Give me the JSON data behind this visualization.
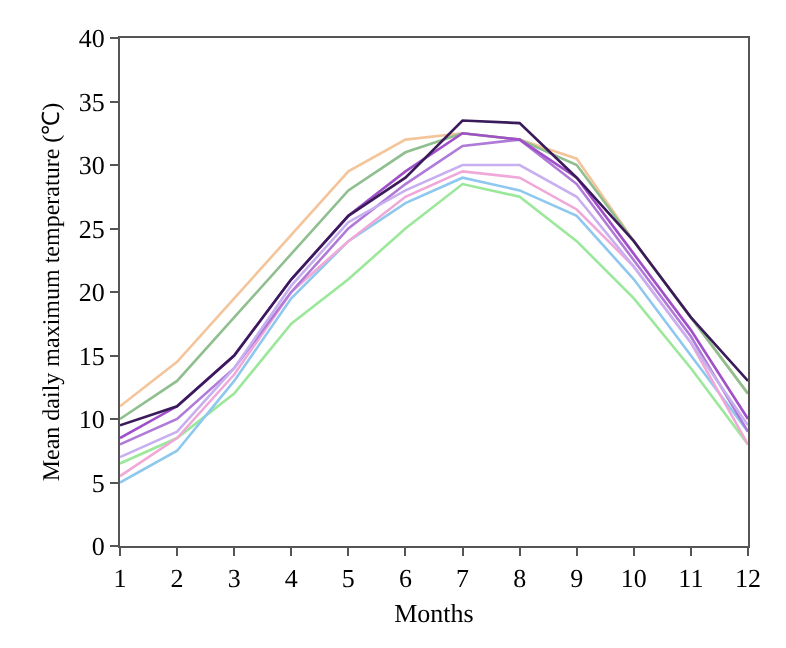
{
  "chart_data": {
    "type": "line",
    "xlabel": "Months",
    "ylabel": "Mean daily maximum temperature (℃)",
    "x": [
      1,
      2,
      3,
      4,
      5,
      6,
      7,
      8,
      9,
      10,
      11,
      12
    ],
    "xlim": [
      1,
      12
    ],
    "xticks": [
      1,
      2,
      3,
      4,
      5,
      6,
      7,
      8,
      9,
      10,
      11,
      12
    ],
    "ylim": [
      0,
      40
    ],
    "yticks": [
      0,
      5,
      10,
      15,
      20,
      25,
      30,
      35,
      40
    ],
    "grid": false,
    "marker": "none",
    "line_style": "solid",
    "series": [
      {
        "color": "#f4c59a",
        "values": [
          11,
          14.5,
          19.5,
          24.5,
          29.5,
          32,
          32.5,
          32,
          30.5,
          24,
          18,
          12
        ]
      },
      {
        "color": "#8fbf8f",
        "values": [
          10,
          13,
          18,
          23,
          28,
          31,
          32.5,
          32,
          30,
          24,
          18,
          12
        ]
      },
      {
        "color": "#9be89b",
        "values": [
          6.5,
          8.5,
          12,
          17.5,
          21,
          25,
          28.5,
          27.5,
          24,
          19.5,
          14,
          8
        ]
      },
      {
        "color": "#8fc8ee",
        "values": [
          5,
          7.5,
          13,
          19.5,
          24,
          27,
          29,
          28,
          26,
          21,
          15,
          9
        ]
      },
      {
        "color": "#f0a8d8",
        "values": [
          5.5,
          8.5,
          13.5,
          20,
          24,
          27.5,
          29.5,
          29,
          26.5,
          22,
          16,
          8
        ]
      },
      {
        "color": "#b07ad8",
        "values": [
          8,
          10,
          14,
          20,
          25,
          28.5,
          31.5,
          32,
          28.5,
          22.5,
          16.5,
          9
        ]
      },
      {
        "color": "#c8b0f0",
        "values": [
          7,
          9,
          14,
          20.5,
          25.5,
          28,
          30,
          30,
          27.5,
          22,
          16,
          9.5
        ]
      },
      {
        "color": "#a050c8",
        "values": [
          8.5,
          11,
          15,
          21,
          26,
          29.5,
          32.5,
          32,
          29,
          23,
          17,
          10
        ]
      },
      {
        "color": "#3a1a5a",
        "values": [
          9.5,
          11,
          15,
          21,
          26,
          29,
          33.5,
          33.3,
          29,
          24,
          18,
          13
        ]
      }
    ]
  }
}
